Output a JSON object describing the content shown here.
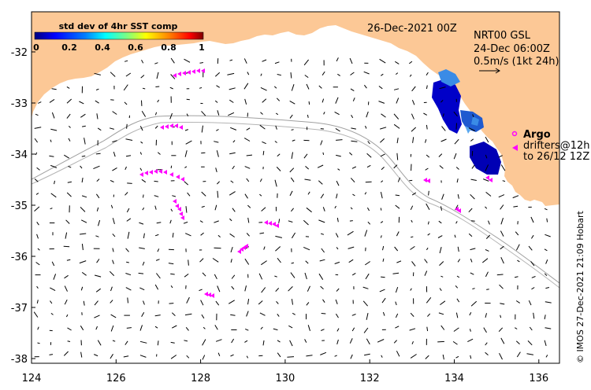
{
  "map": {
    "date_title": "26-Dec-2021 00Z",
    "product": {
      "line1": "NRT00 GSL",
      "line2": "24-Dec 06:00Z",
      "line3": "0.5m/s (1kt 24h)"
    },
    "colorbar": {
      "title": "std dev of 4hr SST comp",
      "ticks": [
        "0",
        "0.2",
        "0.4",
        "0.6",
        "0.8",
        "1"
      ],
      "colors": [
        "#00007f",
        "#0000ff",
        "#007fff",
        "#00ffff",
        "#7fff7f",
        "#ffff00",
        "#ff7f00",
        "#ff0000",
        "#7f0000"
      ]
    },
    "legend": {
      "argo_label": "Argo",
      "drifters_line1": "drifters@12h",
      "drifters_line2": "to 26/12 12Z",
      "marker_color": "#ff00ff"
    },
    "credit": "© IMOS 27-Dec-2021 21:09 Hobart",
    "axes": {
      "x_ticks": [
        "124",
        "126",
        "128",
        "130",
        "132",
        "134",
        "136"
      ],
      "y_ticks": [
        "-32",
        "-33",
        "-34",
        "-35",
        "-36",
        "-37",
        "-38"
      ],
      "lon_range": [
        124,
        136.5
      ],
      "lat_range": [
        -38.1,
        -31.3
      ]
    },
    "colors": {
      "land": "#fcc896",
      "isobath": "#a0a0a0",
      "vector": "#000000"
    }
  }
}
